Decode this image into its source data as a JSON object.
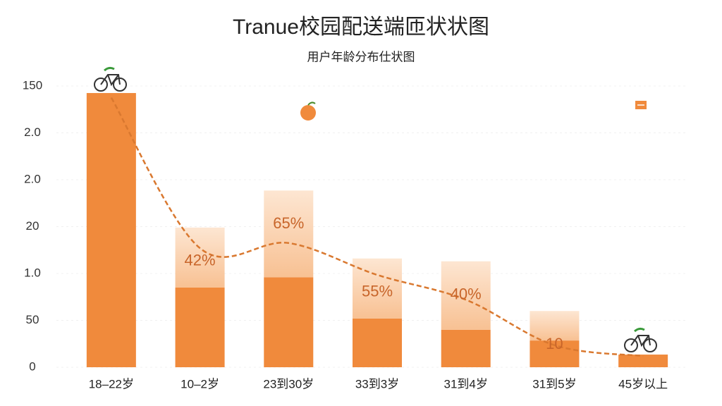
{
  "chart_data": {
    "type": "bar-line",
    "title": "Tranue校园配送端匝状状图",
    "subtitle": "用户年龄分布仕状图",
    "categories": [
      "18–22岁",
      "10–2岁",
      "23到30岁",
      "33到3岁",
      "31到4岁",
      "31到5岁",
      "45岁以上"
    ],
    "series": [
      {
        "color": "#f08a3c",
        "values": [
          5.85,
          1.7,
          1.92,
          1.04,
          0.8,
          0.57,
          0.27
        ]
      },
      {
        "color": "#fbd5b2",
        "values": [
          0,
          1.28,
          1.85,
          1.28,
          1.46,
          0.63,
          0
        ]
      }
    ],
    "line": {
      "color": "#d9782f",
      "values": [
        5.75,
        2.54,
        2.65,
        1.97,
        1.44,
        0.47,
        0.24
      ]
    },
    "labels": [
      null,
      "42%",
      "65%",
      "55%",
      "40%",
      "10",
      null
    ],
    "ylim": [
      0,
      6
    ],
    "yticks": [
      0,
      {
        "value": 1,
        "label": "50"
      },
      {
        "value": 2,
        "label": "1.0"
      },
      {
        "value": 3,
        "label": "20"
      },
      {
        "value": 4,
        "label": "2.0"
      },
      {
        "value": 5,
        "label": "2.0"
      },
      {
        "value": 6,
        "label": "150"
      }
    ],
    "grid": true
  }
}
